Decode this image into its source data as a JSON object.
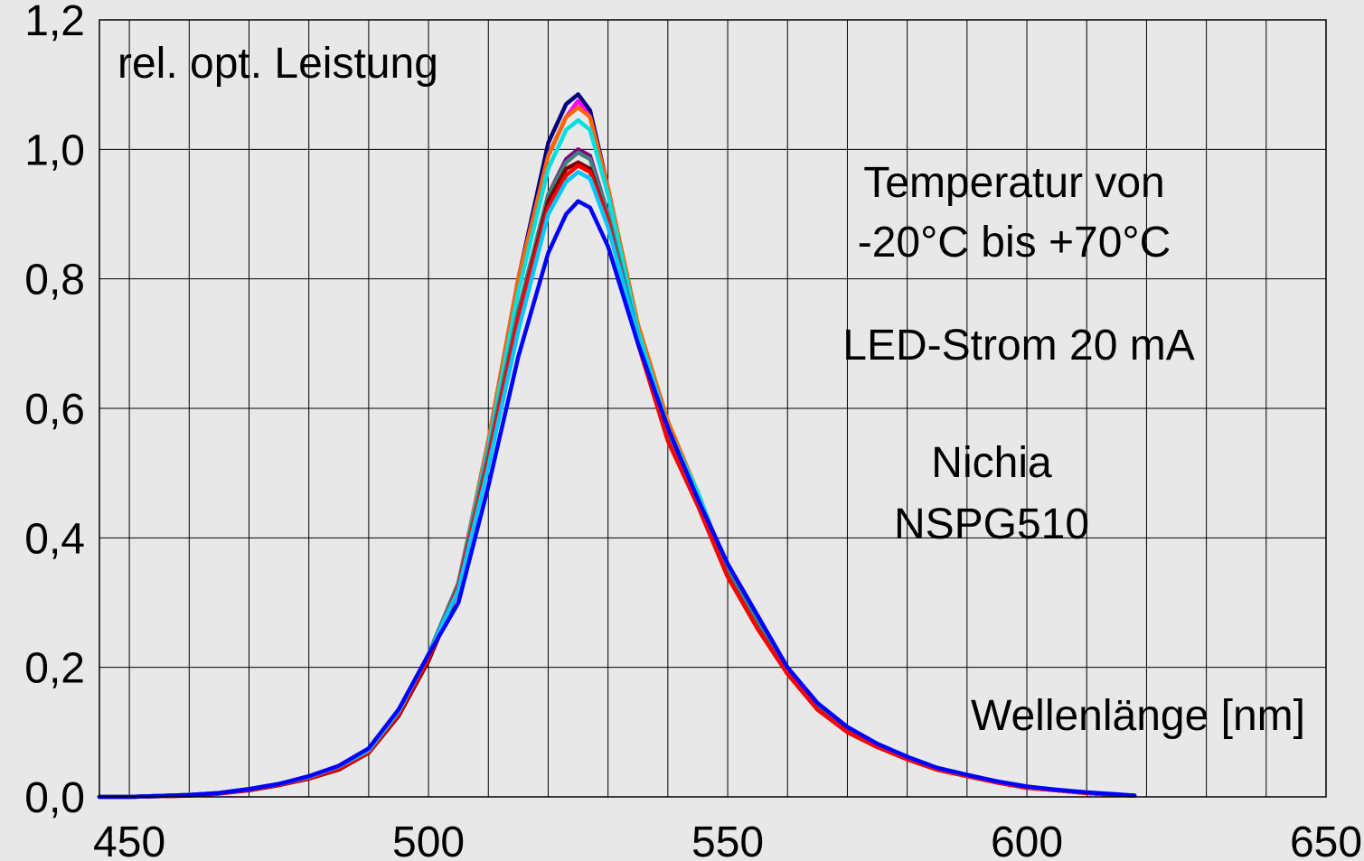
{
  "chart_data": {
    "type": "line",
    "title": "",
    "ylabel": "rel. opt. Leistung",
    "xlabel": "Wellenlänge [nm]",
    "xlim": [
      445,
      650
    ],
    "ylim": [
      0,
      1.2
    ],
    "grid": true,
    "x_ticks": [
      450,
      500,
      550,
      600,
      650
    ],
    "y_ticks": [
      {
        "value": 0.0,
        "label": "0,0"
      },
      {
        "value": 0.2,
        "label": "0,2"
      },
      {
        "value": 0.4,
        "label": "0,4"
      },
      {
        "value": 0.6,
        "label": "0,6"
      },
      {
        "value": 0.8,
        "label": "0,8"
      },
      {
        "value": 1.0,
        "label": "1,0"
      },
      {
        "value": 1.2,
        "label": "1,2"
      }
    ],
    "annotations": {
      "temperature_line1": "Temperatur von",
      "temperature_line2": "-20°C bis +70°C",
      "current": "LED-Strom 20 mA",
      "maker": "Nichia",
      "model": "NSPG510"
    },
    "x": [
      445,
      450,
      460,
      465,
      470,
      475,
      480,
      485,
      490,
      495,
      500,
      505,
      510,
      515,
      520,
      523,
      525,
      527,
      530,
      535,
      540,
      545,
      550,
      555,
      560,
      565,
      570,
      575,
      580,
      585,
      590,
      595,
      600,
      605,
      610,
      615,
      618
    ],
    "series": [
      {
        "color": "#00007f",
        "values": [
          0,
          0,
          0.003,
          0.006,
          0.012,
          0.02,
          0.03,
          0.045,
          0.07,
          0.13,
          0.22,
          0.33,
          0.55,
          0.8,
          1.01,
          1.07,
          1.085,
          1.06,
          0.94,
          0.72,
          0.57,
          0.47,
          0.35,
          0.27,
          0.2,
          0.14,
          0.105,
          0.08,
          0.06,
          0.043,
          0.033,
          0.023,
          0.015,
          0.01,
          0.006,
          0.003,
          0.002
        ]
      },
      {
        "color": "#ff00ff",
        "values": [
          0,
          0,
          0.002,
          0.005,
          0.011,
          0.019,
          0.03,
          0.045,
          0.07,
          0.13,
          0.22,
          0.33,
          0.55,
          0.8,
          0.99,
          1.05,
          1.075,
          1.05,
          0.94,
          0.72,
          0.57,
          0.47,
          0.35,
          0.27,
          0.2,
          0.14,
          0.105,
          0.08,
          0.06,
          0.043,
          0.033,
          0.023,
          0.015,
          0.01,
          0.006,
          0.003,
          0.002
        ]
      },
      {
        "color": "#ff6600",
        "values": [
          0,
          0,
          0.003,
          0.006,
          0.012,
          0.02,
          0.03,
          0.046,
          0.07,
          0.13,
          0.22,
          0.33,
          0.55,
          0.8,
          0.99,
          1.05,
          1.065,
          1.05,
          0.94,
          0.73,
          0.58,
          0.47,
          0.35,
          0.27,
          0.2,
          0.14,
          0.105,
          0.08,
          0.06,
          0.043,
          0.033,
          0.023,
          0.015,
          0.01,
          0.006,
          0.003,
          0.002
        ]
      },
      {
        "color": "#00e0e0",
        "values": [
          0,
          0,
          0.003,
          0.006,
          0.012,
          0.02,
          0.03,
          0.046,
          0.07,
          0.13,
          0.22,
          0.33,
          0.54,
          0.78,
          0.97,
          1.03,
          1.045,
          1.03,
          0.93,
          0.72,
          0.57,
          0.47,
          0.35,
          0.27,
          0.2,
          0.14,
          0.105,
          0.08,
          0.06,
          0.043,
          0.033,
          0.023,
          0.015,
          0.01,
          0.006,
          0.003,
          0.002
        ]
      },
      {
        "color": "#800080",
        "values": [
          0,
          0,
          0.003,
          0.006,
          0.012,
          0.02,
          0.03,
          0.045,
          0.07,
          0.13,
          0.22,
          0.33,
          0.53,
          0.75,
          0.93,
          0.985,
          1.0,
          0.99,
          0.9,
          0.71,
          0.56,
          0.46,
          0.35,
          0.27,
          0.2,
          0.14,
          0.105,
          0.08,
          0.06,
          0.043,
          0.033,
          0.023,
          0.015,
          0.01,
          0.006,
          0.003,
          0.002
        ]
      },
      {
        "color": "#408080",
        "values": [
          0,
          0,
          0.003,
          0.006,
          0.012,
          0.02,
          0.03,
          0.046,
          0.07,
          0.13,
          0.22,
          0.33,
          0.53,
          0.75,
          0.93,
          0.98,
          0.995,
          0.985,
          0.9,
          0.71,
          0.56,
          0.46,
          0.35,
          0.27,
          0.2,
          0.14,
          0.105,
          0.08,
          0.06,
          0.043,
          0.033,
          0.023,
          0.015,
          0.01,
          0.006,
          0.003,
          0.002
        ]
      },
      {
        "color": "#800000",
        "values": [
          0,
          0,
          0.002,
          0.005,
          0.01,
          0.018,
          0.028,
          0.042,
          0.068,
          0.125,
          0.21,
          0.32,
          0.52,
          0.74,
          0.92,
          0.97,
          0.98,
          0.97,
          0.89,
          0.7,
          0.55,
          0.45,
          0.34,
          0.26,
          0.19,
          0.135,
          0.1,
          0.077,
          0.058,
          0.042,
          0.032,
          0.022,
          0.014,
          0.01,
          0.006,
          0.003,
          0.002
        ]
      },
      {
        "color": "#ff0000",
        "values": [
          0,
          0,
          0.002,
          0.005,
          0.011,
          0.019,
          0.029,
          0.044,
          0.069,
          0.128,
          0.215,
          0.325,
          0.52,
          0.74,
          0.91,
          0.96,
          0.975,
          0.965,
          0.89,
          0.7,
          0.55,
          0.45,
          0.34,
          0.26,
          0.19,
          0.135,
          0.1,
          0.077,
          0.058,
          0.042,
          0.032,
          0.022,
          0.014,
          0.01,
          0.006,
          0.003,
          0.002
        ]
      },
      {
        "color": "#00c8ff",
        "values": [
          0,
          0,
          0.003,
          0.006,
          0.012,
          0.02,
          0.031,
          0.047,
          0.072,
          0.132,
          0.22,
          0.32,
          0.51,
          0.72,
          0.9,
          0.95,
          0.965,
          0.955,
          0.88,
          0.71,
          0.57,
          0.46,
          0.36,
          0.28,
          0.2,
          0.145,
          0.108,
          0.082,
          0.062,
          0.045,
          0.034,
          0.024,
          0.016,
          0.011,
          0.007,
          0.004,
          0.002
        ]
      },
      {
        "color": "#0000ff",
        "values": [
          0,
          0,
          0.003,
          0.006,
          0.012,
          0.02,
          0.032,
          0.048,
          0.075,
          0.135,
          0.22,
          0.3,
          0.48,
          0.68,
          0.84,
          0.9,
          0.92,
          0.91,
          0.85,
          0.7,
          0.57,
          0.46,
          0.36,
          0.28,
          0.2,
          0.145,
          0.108,
          0.082,
          0.062,
          0.045,
          0.034,
          0.024,
          0.016,
          0.011,
          0.007,
          0.004,
          0.002
        ]
      }
    ]
  }
}
